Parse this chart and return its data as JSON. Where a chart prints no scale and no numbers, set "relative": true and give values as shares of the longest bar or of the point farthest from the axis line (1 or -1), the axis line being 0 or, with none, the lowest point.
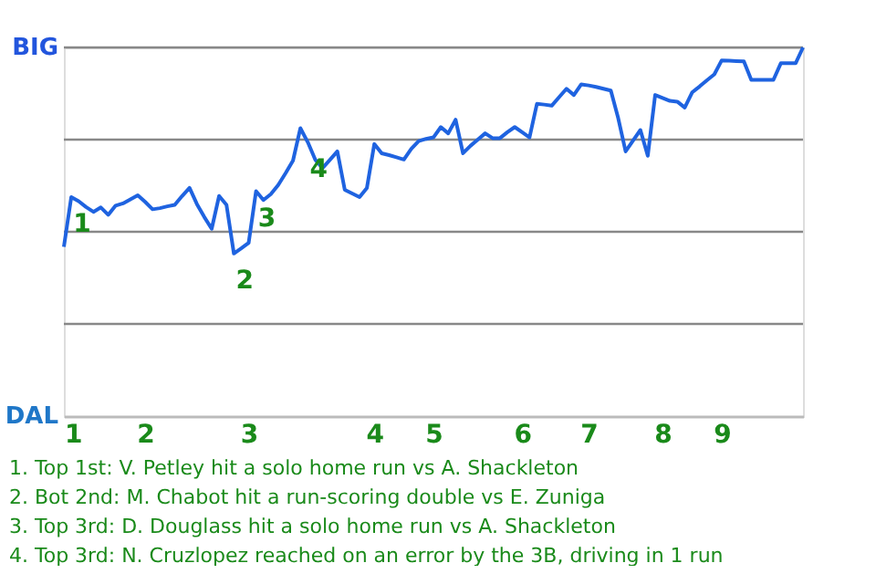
{
  "chart_data": {
    "type": "line",
    "relative": true,
    "categories": [
      "1",
      null,
      null,
      null,
      null,
      null,
      null,
      null,
      null,
      null,
      null,
      "2",
      null,
      null,
      null,
      null,
      null,
      null,
      null,
      null,
      null,
      null,
      null,
      null,
      null,
      "3",
      null,
      null,
      null,
      null,
      null,
      null,
      null,
      null,
      null,
      null,
      null,
      null,
      null,
      null,
      null,
      null,
      "4",
      null,
      null,
      null,
      null,
      null,
      null,
      null,
      "5",
      null,
      null,
      null,
      null,
      null,
      null,
      null,
      null,
      null,
      null,
      null,
      "6",
      null,
      null,
      null,
      null,
      null,
      null,
      null,
      null,
      "7",
      null,
      null,
      null,
      null,
      null,
      null,
      null,
      null,
      null,
      "8",
      null,
      null,
      null,
      null,
      null,
      null,
      null,
      "9",
      null,
      null,
      null,
      null,
      null,
      null,
      null,
      null,
      null,
      null,
      null
    ],
    "series": [
      {
        "color": "#1f63e0",
        "values": [
          0.459,
          0.594,
          0.583,
          0.567,
          0.554,
          0.566,
          0.546,
          0.571,
          0.577,
          0.588,
          0.599,
          0.581,
          0.561,
          0.564,
          0.569,
          0.573,
          0.597,
          0.619,
          0.575,
          0.54,
          0.508,
          0.597,
          0.573,
          0.441,
          0.455,
          0.47,
          0.61,
          0.586,
          0.602,
          0.627,
          0.659,
          0.693,
          0.781,
          0.743,
          0.696,
          0.673,
          0.695,
          0.718,
          0.614,
          0.604,
          0.594,
          0.619,
          0.738,
          0.713,
          0.708,
          0.702,
          0.696,
          0.725,
          0.746,
          0.752,
          0.756,
          0.784,
          0.767,
          0.804,
          0.713,
          0.733,
          0.75,
          0.767,
          0.754,
          0.754,
          0.77,
          0.784,
          0.77,
          0.756,
          0.847,
          0.845,
          0.842,
          0.865,
          0.888,
          0.871,
          0.9,
          0.897,
          0.893,
          0.888,
          0.883,
          0.808,
          0.718,
          0.747,
          0.776,
          0.706,
          0.871,
          0.863,
          0.855,
          0.853,
          0.837,
          0.878,
          0.894,
          0.911,
          0.927,
          0.965,
          0.964,
          0.963,
          0.962,
          0.912,
          0.912,
          0.912,
          0.912,
          0.957,
          0.957,
          0.957,
          1
        ]
      }
    ],
    "ref_lines": [
      {
        "axis": "y",
        "value": 0.25,
        "color": "#888888"
      },
      {
        "axis": "y",
        "value": 0.5,
        "color": "#888888"
      },
      {
        "axis": "y",
        "value": 0.75,
        "color": "#888888"
      },
      {
        "axis": "y",
        "value": 1,
        "color": "#888888"
      }
    ],
    "annotations": [
      {
        "text": "1",
        "y": 0.594
      },
      {
        "text": "2",
        "y": 0.441
      },
      {
        "text": "3",
        "y": 0.61
      },
      {
        "text": "4",
        "y": 0.743
      },
      "BIG",
      "DAL",
      "1. Top 1st: V. Petley hit a solo home run vs A. Shackleton",
      "2. Bot 2nd: M. Chabot hit a run-scoring double vs E. Zuniga",
      "3. Top 3rd: D. Douglass hit a solo home run vs A. Shackleton",
      "4. Top 3rd: N. Cruzlopez reached on an error by the 3B, driving in 1 run"
    ],
    "marker": "none",
    "line_style": "solid"
  }
}
